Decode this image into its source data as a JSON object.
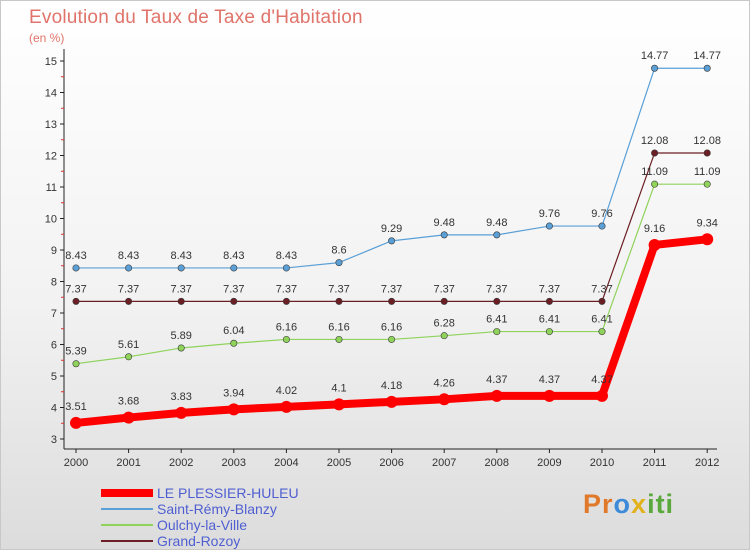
{
  "chart_data": {
    "type": "line",
    "title": "Evolution du Taux de Taxe d'Habitation",
    "ylabel": "(en %)",
    "x": [
      "2000",
      "2001",
      "2002",
      "2003",
      "2004",
      "2005",
      "2006",
      "2007",
      "2008",
      "2009",
      "2010",
      "2011",
      "2012"
    ],
    "ylim": [
      3,
      15
    ],
    "yticks": [
      3,
      4,
      5,
      6,
      7,
      8,
      9,
      10,
      11,
      12,
      13,
      14,
      15
    ],
    "grid": false,
    "legend_position": "bottom-left",
    "series": [
      {
        "name": "Grand-Rozoy",
        "color": "#6b1e24",
        "width": 1.2,
        "values": [
          7.37,
          7.37,
          7.37,
          7.37,
          7.37,
          7.37,
          7.37,
          7.37,
          7.37,
          7.37,
          7.37,
          12.08,
          12.08
        ],
        "labels": [
          "7.37",
          "7.37",
          "7.37",
          "7.37",
          "7.37",
          "7.37",
          "7.37",
          "7.37",
          "7.37",
          "7.37",
          "7.37",
          "12.08",
          "12.08"
        ]
      },
      {
        "name": "Oulchy-la-Ville",
        "color": "#8fd35b",
        "width": 1.2,
        "values": [
          5.39,
          5.61,
          5.89,
          6.04,
          6.16,
          6.16,
          6.16,
          6.28,
          6.41,
          6.41,
          6.41,
          11.09,
          11.09
        ],
        "labels": [
          "5.39",
          "5.61",
          "5.89",
          "6.04",
          "6.16",
          "6.16",
          "6.16",
          "6.28",
          "6.41",
          "6.41",
          "6.41",
          "11.09",
          "11.09"
        ]
      },
      {
        "name": "Saint-Rémy-Blanzy",
        "color": "#5a9fd6",
        "width": 1.2,
        "values": [
          8.43,
          8.43,
          8.43,
          8.43,
          8.43,
          8.6,
          9.29,
          9.48,
          9.48,
          9.76,
          9.76,
          14.77,
          14.77
        ],
        "labels": [
          "8.43",
          "8.43",
          "8.43",
          "8.43",
          "8.43",
          "8.6",
          "9.29",
          "9.48",
          "9.48",
          "9.76",
          "9.76",
          "14.77",
          "14.77"
        ]
      },
      {
        "name": "LE PLESSIER-HULEU",
        "color": "#ff0000",
        "width": 8,
        "values": [
          3.51,
          3.68,
          3.83,
          3.94,
          4.02,
          4.1,
          4.18,
          4.26,
          4.37,
          4.37,
          4.37,
          9.16,
          9.34
        ],
        "labels": [
          "3.51",
          "3.68",
          "3.83",
          "3.94",
          "4.02",
          "4.1",
          "4.18",
          "4.26",
          "4.37",
          "4.37",
          "4.37",
          "9.16",
          "9.34"
        ]
      }
    ]
  },
  "legend": {
    "items": [
      {
        "label": "LE PLESSIER-HULEU",
        "color": "#ff0000"
      },
      {
        "label": "Saint-Rémy-Blanzy",
        "color": "#5a9fd6"
      },
      {
        "label": "Oulchy-la-Ville",
        "color": "#8fd35b"
      },
      {
        "label": "Grand-Rozoy",
        "color": "#6b1e24"
      }
    ]
  },
  "brand": {
    "p1": "Pr",
    "p2": "o",
    "p3": "x",
    "p4": "iti"
  }
}
